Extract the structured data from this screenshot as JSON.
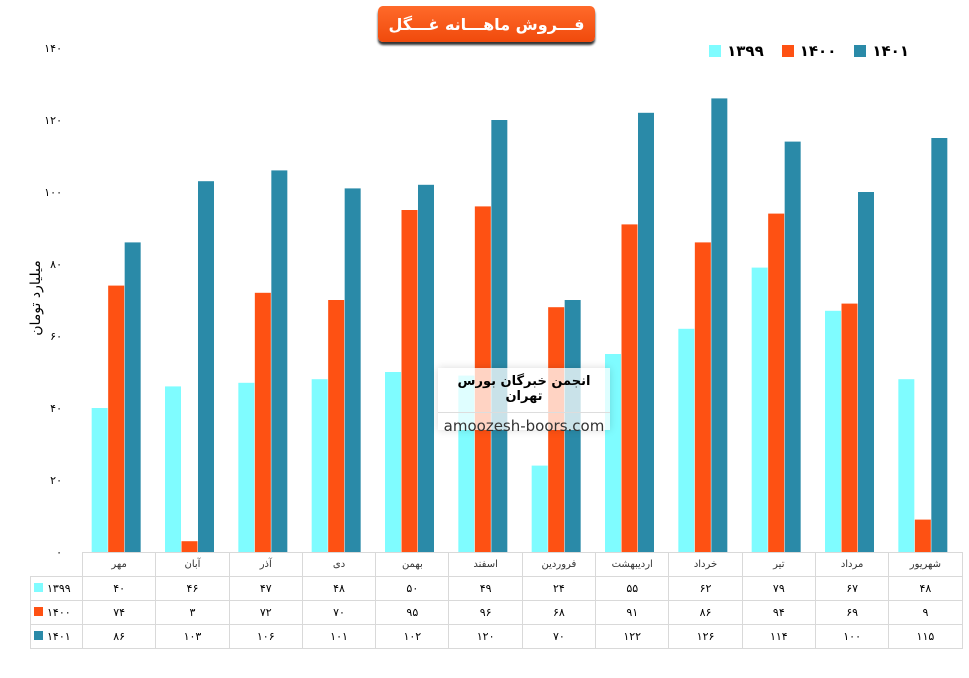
{
  "chart_data": {
    "type": "bar",
    "title": "فـــروش ماهـــانه غـــگل",
    "ylabel": "میلیارد تومان",
    "xlabel": "",
    "ylim": [
      0,
      140
    ],
    "yticks": [
      0,
      20,
      40,
      60,
      80,
      100,
      120,
      140
    ],
    "grid": false,
    "legend_position": "top-right",
    "categories": [
      "مهر",
      "آبان",
      "آذر",
      "دی",
      "بهمن",
      "اسفند",
      "فروردین",
      "اردیبهشت",
      "خرداد",
      "تیر",
      "مرداد",
      "شهریور"
    ],
    "series": [
      {
        "name": "۱۳۹۹",
        "color": "#7ffcff",
        "values": [
          40,
          46,
          47,
          48,
          50,
          49,
          24,
          55,
          62,
          79,
          67,
          48
        ]
      },
      {
        "name": "۱۴۰۰",
        "color": "#fe5113",
        "values": [
          74,
          3,
          72,
          70,
          95,
          96,
          68,
          91,
          86,
          94,
          69,
          9
        ]
      },
      {
        "name": "۱۴۰۱",
        "color": "#2a8aa8",
        "values": [
          86,
          103,
          106,
          101,
          102,
          120,
          70,
          122,
          126,
          114,
          100,
          115
        ]
      }
    ]
  },
  "watermark": {
    "line1": "انجمن خبرگان بورس تهران",
    "line2": "amoozesh-boors.com"
  }
}
